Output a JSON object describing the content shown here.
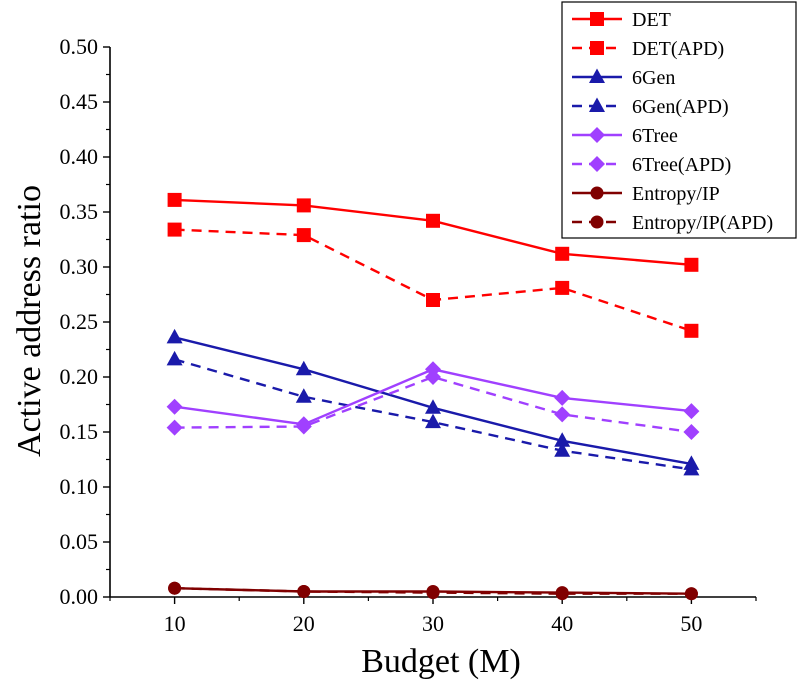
{
  "chart_data": {
    "type": "line",
    "title": "",
    "xlabel": "Budget (M)",
    "ylabel": "Active address ratio",
    "x": [
      10,
      20,
      30,
      40,
      50
    ],
    "xlim": [
      5,
      55
    ],
    "ylim": [
      0,
      0.5
    ],
    "xticks": [
      "10",
      "20",
      "30",
      "40",
      "50"
    ],
    "yticks": [
      "0.00",
      "0.05",
      "0.10",
      "0.15",
      "0.20",
      "0.25",
      "0.30",
      "0.35",
      "0.40",
      "0.45",
      "0.50"
    ],
    "grid": false,
    "legend_position": "top-right",
    "series": [
      {
        "name": "DET",
        "values": [
          0.361,
          0.356,
          0.342,
          0.312,
          0.302
        ],
        "color": "#ff0000",
        "dash": false,
        "marker": "square"
      },
      {
        "name": "DET(APD)",
        "values": [
          0.334,
          0.329,
          0.27,
          0.281,
          0.242
        ],
        "color": "#ff0000",
        "dash": true,
        "marker": "square"
      },
      {
        "name": "6Gen",
        "values": [
          0.236,
          0.207,
          0.172,
          0.142,
          0.121
        ],
        "color": "#1a1aaa",
        "dash": false,
        "marker": "triangle"
      },
      {
        "name": "6Gen(APD)",
        "values": [
          0.216,
          0.182,
          0.159,
          0.133,
          0.116
        ],
        "color": "#1a1aaa",
        "dash": true,
        "marker": "triangle"
      },
      {
        "name": "6Tree",
        "values": [
          0.173,
          0.157,
          0.207,
          0.181,
          0.169
        ],
        "color": "#a040ff",
        "dash": false,
        "marker": "diamond"
      },
      {
        "name": "6Tree(APD)",
        "values": [
          0.154,
          0.155,
          0.2,
          0.166,
          0.15
        ],
        "color": "#a040ff",
        "dash": true,
        "marker": "diamond"
      },
      {
        "name": "Entropy/IP",
        "values": [
          0.008,
          0.005,
          0.005,
          0.004,
          0.003
        ],
        "color": "#800000",
        "dash": false,
        "marker": "circle"
      },
      {
        "name": "Entropy/IP(APD)",
        "values": [
          0.008,
          0.005,
          0.004,
          0.003,
          0.003
        ],
        "color": "#800000",
        "dash": true,
        "marker": "circle"
      }
    ]
  }
}
